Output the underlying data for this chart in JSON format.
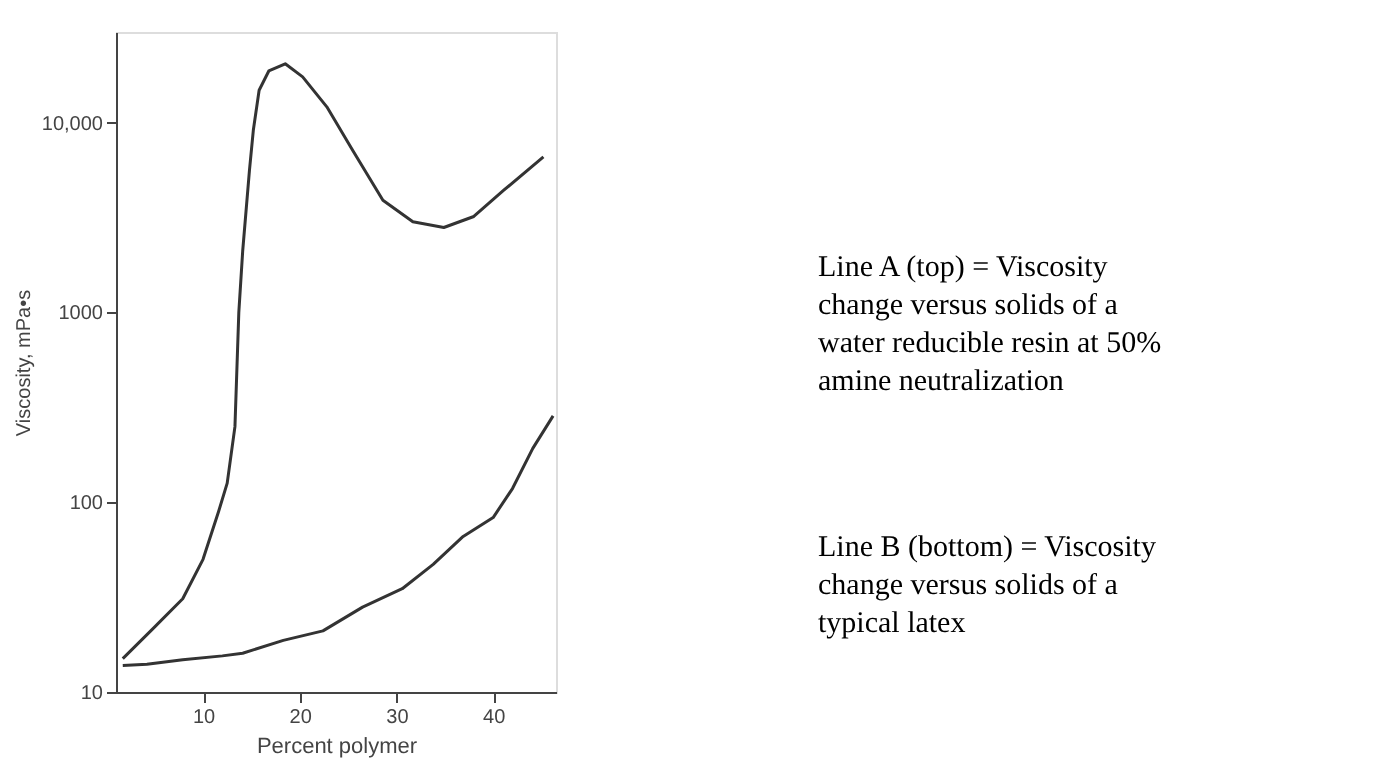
{
  "chart_data": {
    "type": "line",
    "xlabel": "Percent polymer",
    "ylabel": "Viscosity, mPa•s",
    "log": "y",
    "grid": false,
    "marker": "none",
    "line_style": "solid",
    "xlim": [
      1,
      46.5
    ],
    "xticks": [
      10,
      20,
      30,
      40
    ],
    "ylim": [
      10,
      30000
    ],
    "yticks": [
      10,
      100,
      1000,
      {
        "value": 10000,
        "label": "10,000"
      }
    ],
    "series": [
      {
        "color": "#333333",
        "x": [
          1.7,
          4.8,
          7.9,
          10,
          11.6,
          12.5,
          13.3,
          13.5,
          13.7,
          14.1,
          14.8,
          15.2,
          15.8,
          16.8,
          18.5,
          20.3,
          22.8,
          25.5,
          28.6,
          31.7,
          34.9,
          38,
          41.1,
          45.2
        ],
        "values": [
          15,
          21.5,
          31,
          50,
          89,
          126,
          250,
          500,
          1000,
          2100,
          5600,
          9100,
          14800,
          18700,
          20400,
          17400,
          12100,
          7100,
          3900,
          3000,
          2800,
          3200,
          4400,
          6600
        ]
      },
      {
        "color": "#333333",
        "x": [
          1.7,
          4.2,
          7.9,
          12,
          14.1,
          18.3,
          22.4,
          26.5,
          30.6,
          33.8,
          36.9,
          40,
          42,
          44.1,
          46.2
        ],
        "values": [
          13.8,
          14,
          14.8,
          15.5,
          16,
          18.7,
          21,
          28,
          35,
          47,
          66,
          83,
          118,
          192,
          285
        ]
      }
    ],
    "annotations": [
      "Line A (top) = Viscosity change versus solids of a water reducible resin at 50% amine neutralization",
      "Line B (bottom) = Viscosity change versus solids of a typical latex"
    ]
  }
}
